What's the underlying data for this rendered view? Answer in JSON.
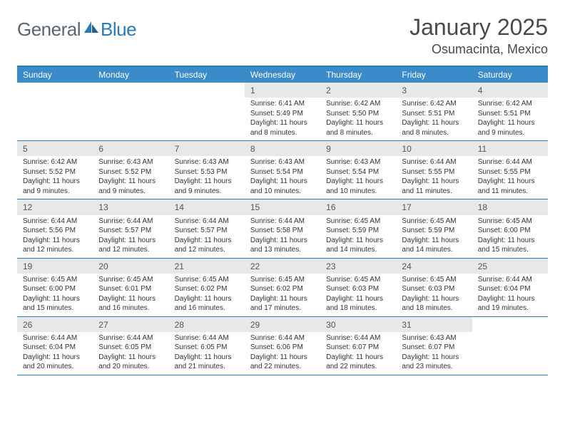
{
  "logo": {
    "text1": "General",
    "text2": "Blue"
  },
  "title": "January 2025",
  "subtitle": "Osumacinta, Mexico",
  "colors": {
    "header_bg": "#3b8bc9",
    "border": "#2a7ab8",
    "daynum_bg": "#e8e8e8",
    "text": "#333333",
    "logo_gray": "#5a6570",
    "logo_blue": "#2a7ab8"
  },
  "day_names": [
    "Sunday",
    "Monday",
    "Tuesday",
    "Wednesday",
    "Thursday",
    "Friday",
    "Saturday"
  ],
  "weeks": [
    [
      null,
      null,
      null,
      {
        "n": "1",
        "sr": "6:41 AM",
        "ss": "5:49 PM",
        "dl": "11 hours and 8 minutes."
      },
      {
        "n": "2",
        "sr": "6:42 AM",
        "ss": "5:50 PM",
        "dl": "11 hours and 8 minutes."
      },
      {
        "n": "3",
        "sr": "6:42 AM",
        "ss": "5:51 PM",
        "dl": "11 hours and 8 minutes."
      },
      {
        "n": "4",
        "sr": "6:42 AM",
        "ss": "5:51 PM",
        "dl": "11 hours and 9 minutes."
      }
    ],
    [
      {
        "n": "5",
        "sr": "6:42 AM",
        "ss": "5:52 PM",
        "dl": "11 hours and 9 minutes."
      },
      {
        "n": "6",
        "sr": "6:43 AM",
        "ss": "5:52 PM",
        "dl": "11 hours and 9 minutes."
      },
      {
        "n": "7",
        "sr": "6:43 AM",
        "ss": "5:53 PM",
        "dl": "11 hours and 9 minutes."
      },
      {
        "n": "8",
        "sr": "6:43 AM",
        "ss": "5:54 PM",
        "dl": "11 hours and 10 minutes."
      },
      {
        "n": "9",
        "sr": "6:43 AM",
        "ss": "5:54 PM",
        "dl": "11 hours and 10 minutes."
      },
      {
        "n": "10",
        "sr": "6:44 AM",
        "ss": "5:55 PM",
        "dl": "11 hours and 11 minutes."
      },
      {
        "n": "11",
        "sr": "6:44 AM",
        "ss": "5:55 PM",
        "dl": "11 hours and 11 minutes."
      }
    ],
    [
      {
        "n": "12",
        "sr": "6:44 AM",
        "ss": "5:56 PM",
        "dl": "11 hours and 12 minutes."
      },
      {
        "n": "13",
        "sr": "6:44 AM",
        "ss": "5:57 PM",
        "dl": "11 hours and 12 minutes."
      },
      {
        "n": "14",
        "sr": "6:44 AM",
        "ss": "5:57 PM",
        "dl": "11 hours and 12 minutes."
      },
      {
        "n": "15",
        "sr": "6:44 AM",
        "ss": "5:58 PM",
        "dl": "11 hours and 13 minutes."
      },
      {
        "n": "16",
        "sr": "6:45 AM",
        "ss": "5:59 PM",
        "dl": "11 hours and 14 minutes."
      },
      {
        "n": "17",
        "sr": "6:45 AM",
        "ss": "5:59 PM",
        "dl": "11 hours and 14 minutes."
      },
      {
        "n": "18",
        "sr": "6:45 AM",
        "ss": "6:00 PM",
        "dl": "11 hours and 15 minutes."
      }
    ],
    [
      {
        "n": "19",
        "sr": "6:45 AM",
        "ss": "6:00 PM",
        "dl": "11 hours and 15 minutes."
      },
      {
        "n": "20",
        "sr": "6:45 AM",
        "ss": "6:01 PM",
        "dl": "11 hours and 16 minutes."
      },
      {
        "n": "21",
        "sr": "6:45 AM",
        "ss": "6:02 PM",
        "dl": "11 hours and 16 minutes."
      },
      {
        "n": "22",
        "sr": "6:45 AM",
        "ss": "6:02 PM",
        "dl": "11 hours and 17 minutes."
      },
      {
        "n": "23",
        "sr": "6:45 AM",
        "ss": "6:03 PM",
        "dl": "11 hours and 18 minutes."
      },
      {
        "n": "24",
        "sr": "6:45 AM",
        "ss": "6:03 PM",
        "dl": "11 hours and 18 minutes."
      },
      {
        "n": "25",
        "sr": "6:44 AM",
        "ss": "6:04 PM",
        "dl": "11 hours and 19 minutes."
      }
    ],
    [
      {
        "n": "26",
        "sr": "6:44 AM",
        "ss": "6:04 PM",
        "dl": "11 hours and 20 minutes."
      },
      {
        "n": "27",
        "sr": "6:44 AM",
        "ss": "6:05 PM",
        "dl": "11 hours and 20 minutes."
      },
      {
        "n": "28",
        "sr": "6:44 AM",
        "ss": "6:05 PM",
        "dl": "11 hours and 21 minutes."
      },
      {
        "n": "29",
        "sr": "6:44 AM",
        "ss": "6:06 PM",
        "dl": "11 hours and 22 minutes."
      },
      {
        "n": "30",
        "sr": "6:44 AM",
        "ss": "6:07 PM",
        "dl": "11 hours and 22 minutes."
      },
      {
        "n": "31",
        "sr": "6:43 AM",
        "ss": "6:07 PM",
        "dl": "11 hours and 23 minutes."
      },
      null
    ]
  ],
  "labels": {
    "sunrise": "Sunrise: ",
    "sunset": "Sunset: ",
    "daylight": "Daylight: "
  }
}
